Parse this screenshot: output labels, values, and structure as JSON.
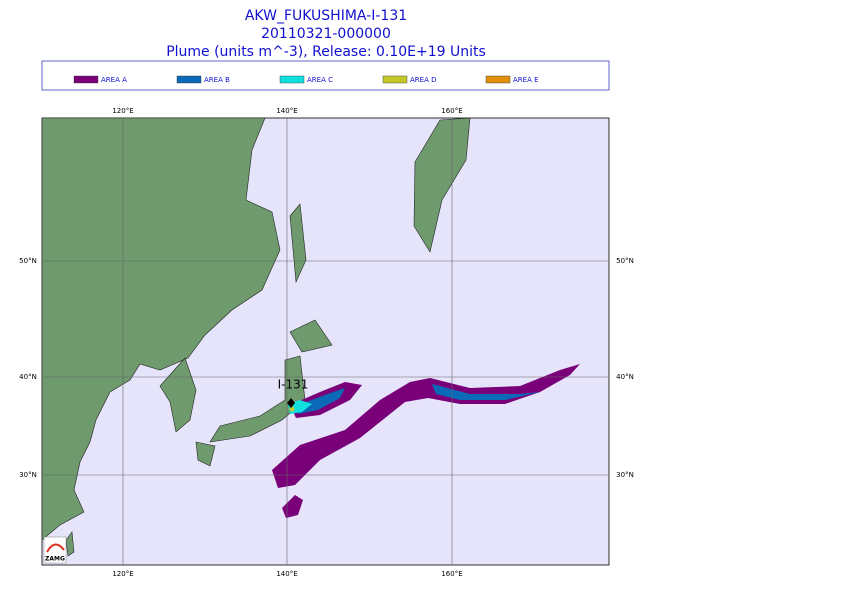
{
  "header": {
    "title": "AKW_FUKUSHIMA-I-131",
    "date": "20110321-000000",
    "subtitle": "Plume (units m^-3), Release:  0.10E+19 Units"
  },
  "legend": [
    {
      "label": "AREA A",
      "color": "#7a007a"
    },
    {
      "label": "AREA B",
      "color": "#0a6ab8"
    },
    {
      "label": "AREA C",
      "color": "#10e0e0"
    },
    {
      "label": "AREA D",
      "color": "#c4c82a"
    },
    {
      "label": "AREA E",
      "color": "#e0900a"
    }
  ],
  "map": {
    "lon_labels": [
      "120°E",
      "140°E",
      "160°E"
    ],
    "lat_labels": [
      "50°N",
      "40°N",
      "30°N"
    ],
    "source_label": "I-131",
    "logo": "ZAMG"
  }
}
